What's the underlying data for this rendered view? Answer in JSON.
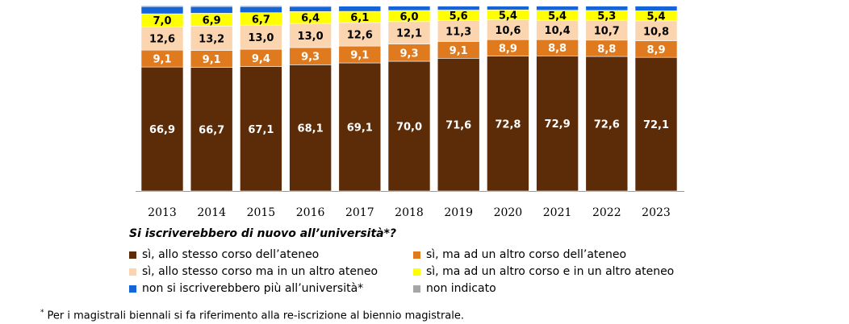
{
  "chart_data": {
    "type": "bar",
    "stacked": true,
    "categories": [
      "2013",
      "2014",
      "2015",
      "2016",
      "2017",
      "2018",
      "2019",
      "2020",
      "2021",
      "2022",
      "2023"
    ],
    "series": [
      {
        "name": "sì, allo stesso corso dell'ateneo",
        "color": "#5c2b07",
        "label_color": "#ffffff",
        "values": [
          66.9,
          66.7,
          67.1,
          68.1,
          69.1,
          70.0,
          71.6,
          72.8,
          72.9,
          72.6,
          72.1
        ],
        "labels": [
          "66,9",
          "66,7",
          "67,1",
          "68,1",
          "69,1",
          "70,0",
          "71,6",
          "72,8",
          "72,9",
          "72,6",
          "72,1"
        ]
      },
      {
        "name": "sì, ma ad un altro corso dell'ateneo",
        "color": "#e07a1f",
        "label_color": "#ffffff",
        "values": [
          9.1,
          9.1,
          9.4,
          9.3,
          9.1,
          9.3,
          9.1,
          8.9,
          8.8,
          8.8,
          8.9
        ],
        "labels": [
          "9,1",
          "9,1",
          "9,4",
          "9,3",
          "9,1",
          "9,3",
          "9,1",
          "8,9",
          "8,8",
          "8,8",
          "8,9"
        ]
      },
      {
        "name": "sì, allo stesso corso ma in un altro ateneo",
        "color": "#fbd4b0",
        "label_color": "#000000",
        "values": [
          12.6,
          13.2,
          13.0,
          13.0,
          12.6,
          12.1,
          11.3,
          10.6,
          10.4,
          10.7,
          10.8
        ],
        "labels": [
          "12,6",
          "13,2",
          "13,0",
          "13,0",
          "12,6",
          "12,1",
          "11,3",
          "10,6",
          "10,4",
          "10,7",
          "10,8"
        ]
      },
      {
        "name": "sì, ma ad un altro corso e in un altro ateneo",
        "color": "#ffff00",
        "label_color": "#000000",
        "values": [
          7.0,
          6.9,
          6.7,
          6.4,
          6.1,
          6.0,
          5.6,
          5.4,
          5.4,
          5.3,
          5.4
        ],
        "labels": [
          "7,0",
          "6,9",
          "6,7",
          "6,4",
          "6,1",
          "6,0",
          "5,6",
          "5,4",
          "5,4",
          "5,3",
          "5,4"
        ]
      },
      {
        "name": "non si iscriverebbero più all'università",
        "color": "#1565d8",
        "label_color": "#ffffff",
        "values": [
          3.9,
          3.6,
          3.3,
          2.8,
          2.8,
          2.4,
          2.2,
          2.1,
          2.3,
          2.4,
          2.6
        ],
        "labels": []
      },
      {
        "name": "non indicato",
        "color": "#a6a6a6",
        "label_color": "#000000",
        "values": [
          0.5,
          0.5,
          0.5,
          0.4,
          0.3,
          0.2,
          0.2,
          0.2,
          0.2,
          0.2,
          0.2
        ],
        "labels": []
      }
    ],
    "ylim": [
      0,
      100
    ],
    "title": "",
    "xlabel": "",
    "ylabel": "",
    "legend_position": "bottom"
  },
  "legend": {
    "title": "Si iscriverebbero di nuovo all’università*?",
    "items": [
      "sì, allo stesso corso dell’ateneo",
      "sì, ma ad un altro corso dell’ateneo",
      "sì, allo stesso corso ma in un altro ateneo",
      "sì, ma ad un altro corso e in un altro ateneo",
      "non si iscriverebbero più all’università*",
      "non indicato"
    ]
  },
  "footnote": {
    "marker": "*",
    "text": "Per i magistrali biennali si fa riferimento alla re-iscrizione al biennio magistrale."
  }
}
